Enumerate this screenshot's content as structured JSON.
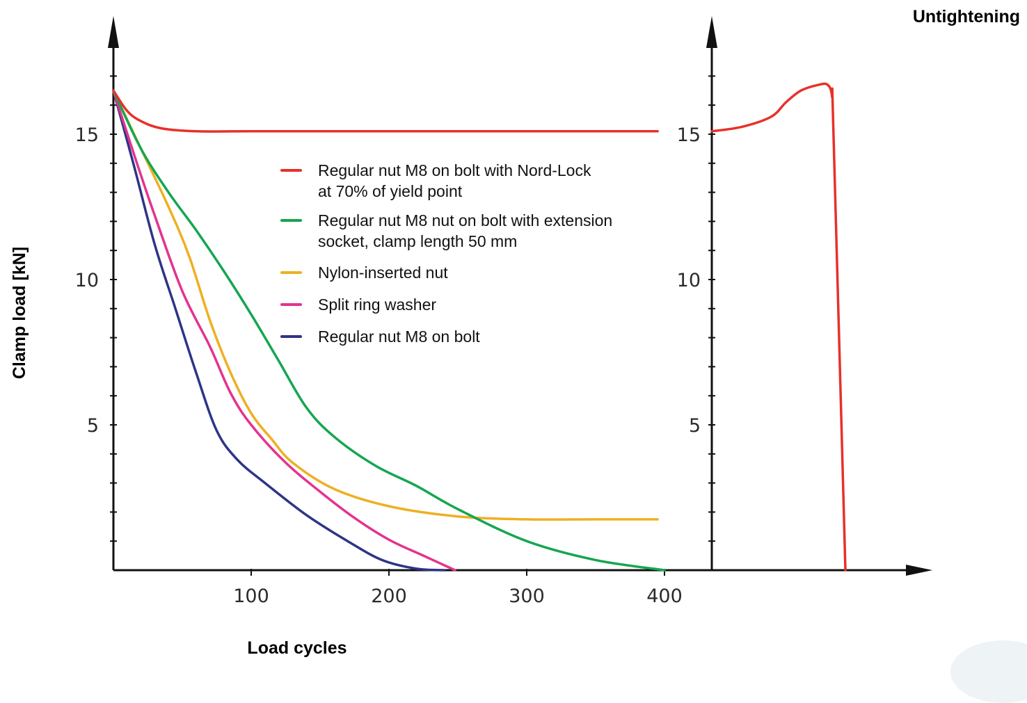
{
  "chart_data": {
    "type": "line",
    "title": "",
    "xlabel": "Load cycles",
    "ylabel": "Clamp load [kN]",
    "xlim": [
      0,
      400
    ],
    "ylim": [
      0,
      17
    ],
    "x_ticks": [
      100,
      200,
      300,
      400
    ],
    "y_ticks": [
      5,
      10,
      15
    ],
    "grid": false,
    "legend_position": "center",
    "series": [
      {
        "name": "Regular nut M8 on bolt with Nord-Lock at 70% of yield point",
        "legend_lines": [
          "Regular nut M8 on bolt with Nord-Lock",
          "at 70% of yield point"
        ],
        "color": "#e8302a",
        "points": [
          [
            0,
            16.5
          ],
          [
            10,
            15.8
          ],
          [
            20,
            15.45
          ],
          [
            35,
            15.2
          ],
          [
            60,
            15.1
          ],
          [
            100,
            15.1
          ],
          [
            200,
            15.1
          ],
          [
            300,
            15.1
          ],
          [
            395,
            15.1
          ]
        ]
      },
      {
        "name": "Regular nut M8 nut on bolt with extension socket, clamp length 50 mm",
        "legend_lines": [
          "Regular nut M8 nut on bolt with extension",
          "socket, clamp length 50 mm"
        ],
        "color": "#15a650",
        "points": [
          [
            0,
            16.5
          ],
          [
            20,
            14.5
          ],
          [
            40,
            13.0
          ],
          [
            60,
            11.7
          ],
          [
            80,
            10.3
          ],
          [
            100,
            8.8
          ],
          [
            120,
            7.2
          ],
          [
            140,
            5.6
          ],
          [
            160,
            4.6
          ],
          [
            190,
            3.6
          ],
          [
            220,
            2.9
          ],
          [
            250,
            2.1
          ],
          [
            300,
            1.0
          ],
          [
            350,
            0.35
          ],
          [
            400,
            0.0
          ]
        ]
      },
      {
        "name": "Nylon-inserted nut",
        "legend_lines": [
          "Nylon-inserted nut"
        ],
        "color": "#edb023",
        "points": [
          [
            0,
            16.5
          ],
          [
            20,
            14.5
          ],
          [
            40,
            12.5
          ],
          [
            55,
            10.8
          ],
          [
            70,
            8.6
          ],
          [
            85,
            6.8
          ],
          [
            100,
            5.4
          ],
          [
            115,
            4.5
          ],
          [
            130,
            3.7
          ],
          [
            160,
            2.8
          ],
          [
            200,
            2.2
          ],
          [
            250,
            1.85
          ],
          [
            300,
            1.75
          ],
          [
            350,
            1.75
          ],
          [
            395,
            1.75
          ]
        ]
      },
      {
        "name": "Split ring washer",
        "legend_lines": [
          "Split ring washer"
        ],
        "color": "#e3338e",
        "points": [
          [
            0,
            16.5
          ],
          [
            15,
            14.3
          ],
          [
            30,
            12.2
          ],
          [
            50,
            9.6
          ],
          [
            70,
            7.7
          ],
          [
            85,
            6.1
          ],
          [
            100,
            5.0
          ],
          [
            125,
            3.7
          ],
          [
            150,
            2.7
          ],
          [
            175,
            1.8
          ],
          [
            200,
            1.05
          ],
          [
            225,
            0.5
          ],
          [
            248,
            0.0
          ]
        ]
      },
      {
        "name": "Regular nut M8 on bolt",
        "legend_lines": [
          "Regular nut M8 on bolt"
        ],
        "color": "#2e3486",
        "points": [
          [
            0,
            16.5
          ],
          [
            15,
            13.9
          ],
          [
            30,
            11.2
          ],
          [
            45,
            9.0
          ],
          [
            60,
            6.8
          ],
          [
            75,
            4.8
          ],
          [
            90,
            3.8
          ],
          [
            110,
            3.0
          ],
          [
            140,
            1.9
          ],
          [
            170,
            1.0
          ],
          [
            195,
            0.35
          ],
          [
            220,
            0.05
          ],
          [
            240,
            0.0
          ]
        ]
      }
    ],
    "untightening": {
      "title": "Untightening",
      "y_ticks": [
        5,
        10,
        15
      ],
      "series_color": "#e8302a",
      "description_points": [
        [
          0,
          15.1
        ],
        [
          0.2,
          15.25
        ],
        [
          0.4,
          15.6
        ],
        [
          0.5,
          16.1
        ],
        [
          0.6,
          16.5
        ],
        [
          0.72,
          16.7
        ],
        [
          0.78,
          16.7
        ],
        [
          0.81,
          16.3
        ],
        [
          0.82,
          15.0
        ],
        [
          0.9,
          0.0
        ]
      ]
    }
  },
  "colors": {
    "axis": "#111111",
    "tick_label": "#2b2b2b"
  }
}
